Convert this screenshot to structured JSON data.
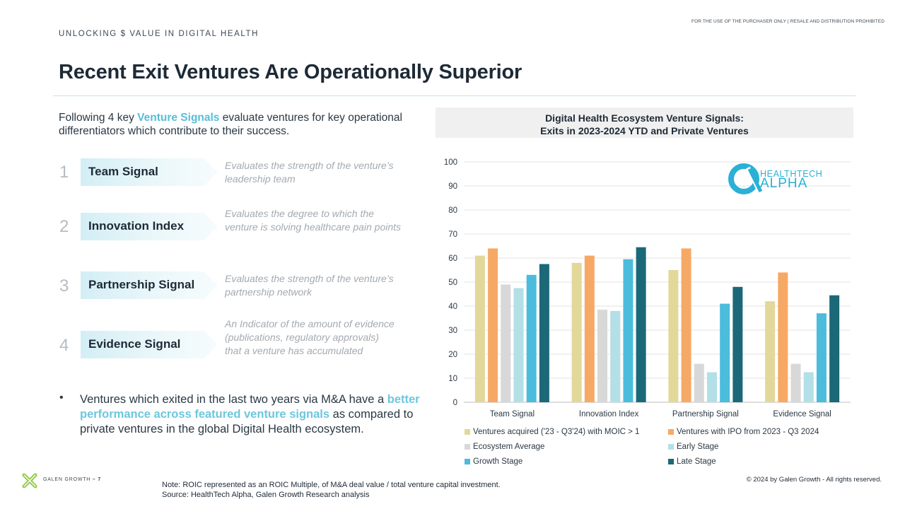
{
  "header": {
    "kicker": "UNLOCKING $ VALUE IN DIGITAL HEALTH",
    "disclaimer": "FOR THE USE OF THE PURCHASER ONLY | RESALE AND DISTRIBUTION PROHIBITED",
    "title": "Recent Exit Ventures Are Operationally Superior"
  },
  "intro": {
    "prefix": "Following 4 key ",
    "highlight": "Venture Signals",
    "suffix": " evaluate ventures for key operational differentiators which contribute to their success."
  },
  "signals": [
    {
      "number": "1",
      "label": "Team Signal",
      "description": "Evaluates the strength of the venture’s leadership team"
    },
    {
      "number": "2",
      "label": "Innovation Index",
      "description": "Evaluates the degree to which the venture is solving healthcare pain points"
    },
    {
      "number": "3",
      "label": "Partnership Signal",
      "description": "Evaluates the strength of the venture’s partnership network"
    },
    {
      "number": "4",
      "label": "Evidence Signal",
      "description": "An Indicator of the amount of evidence (publications, regulatory approvals) that a venture has accumulated"
    }
  ],
  "bullet": {
    "prefix": "Ventures which exited in the last two years via M&A have a ",
    "highlight": "better performance across featured venture signals",
    "suffix": " as compared to private ventures in the global Digital Health ecosystem."
  },
  "logo": {
    "line1": "HEALTHTECH",
    "line2": "ALPHA"
  },
  "footer": {
    "brand": "GALEN GROWTH",
    "page": "– 7",
    "note": "Note: ROIC represented as an ROIC Multiple, of M&A deal value / total venture capital investment.",
    "source": "Source: HealthTech Alpha, Galen Growth Research analysis",
    "copyright": "© 2024 by Galen Growth  - All rights reserved."
  },
  "chart_data": {
    "type": "bar",
    "title": "Digital Health Ecosystem Venture Signals:",
    "subtitle": "Exits in 2023-2024 YTD and Private Ventures",
    "categories": [
      "Team Signal",
      "Innovation Index",
      "Partnership Signal",
      "Evidence Signal"
    ],
    "series": [
      {
        "name": "Ventures acquired ('23 - Q3'24) with MOIC > 1",
        "color": "#e2d89a",
        "values": [
          61,
          58,
          55,
          42
        ]
      },
      {
        "name": "Ventures with IPO from 2023 - Q3 2024",
        "color": "#f6a965",
        "values": [
          64,
          61,
          64,
          54
        ]
      },
      {
        "name": "Ecosystem Average",
        "color": "#d8d8d8",
        "values": [
          49,
          38.5,
          16,
          16
        ]
      },
      {
        "name": "Early Stage",
        "color": "#b3dfe7",
        "values": [
          47.5,
          38,
          12.5,
          12.5
        ]
      },
      {
        "name": "Growth Stage",
        "color": "#4bbcdc",
        "values": [
          53,
          59.5,
          41,
          37
        ]
      },
      {
        "name": "Late Stage",
        "color": "#1b6878",
        "values": [
          57.5,
          64.5,
          48,
          44.5
        ]
      }
    ],
    "ylim": [
      0,
      100
    ],
    "yticks": [
      0,
      10,
      20,
      30,
      40,
      50,
      60,
      70,
      80,
      90,
      100
    ],
    "grid": true,
    "legend_position": "bottom"
  }
}
